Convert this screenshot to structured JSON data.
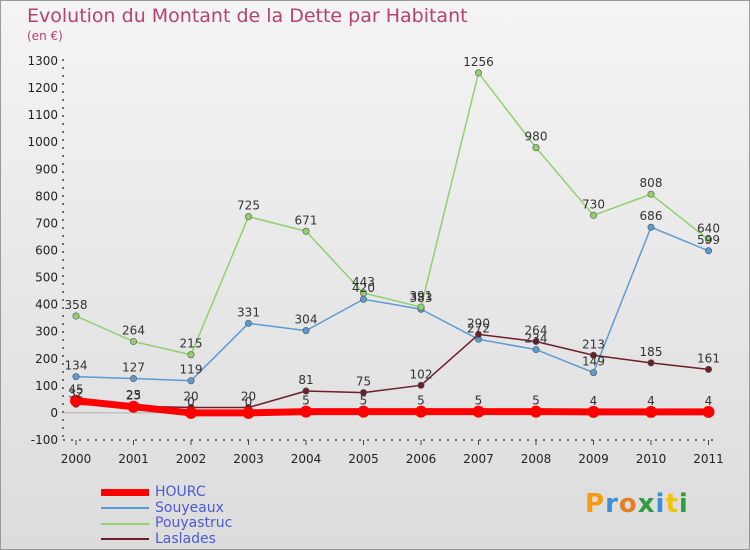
{
  "title": "Evolution du Montant de la Dette par Habitant",
  "unit": "(en €)",
  "logo": "Proxiti",
  "chart_data": {
    "type": "line",
    "categories": [
      "2000",
      "2001",
      "2002",
      "2003",
      "2004",
      "2005",
      "2006",
      "2007",
      "2008",
      "2009",
      "2010",
      "2011"
    ],
    "ylim": [
      -100,
      1300
    ],
    "yticks": [
      -100,
      0,
      100,
      200,
      300,
      400,
      500,
      600,
      700,
      800,
      900,
      1000,
      1100,
      1200,
      1300
    ],
    "grid": false,
    "legend_position": "bottom-left",
    "series": [
      {
        "name": "HOURC",
        "color": "#ff0000",
        "values": [
          45,
          23,
          0,
          0,
          5,
          5,
          5,
          5,
          5,
          4,
          4,
          4
        ]
      },
      {
        "name": "Souyeaux",
        "color": "#5b9bd5",
        "values": [
          134,
          127,
          119,
          331,
          304,
          420,
          383,
          272,
          234,
          149,
          686,
          599
        ]
      },
      {
        "name": "Pouyastruc",
        "color": "#8fd16a",
        "values": [
          358,
          264,
          215,
          725,
          671,
          443,
          391,
          1256,
          980,
          730,
          808,
          640
        ]
      },
      {
        "name": "Laslades",
        "color": "#6b1f2a",
        "values": [
          32,
          25,
          20,
          20,
          81,
          75,
          102,
          290,
          264,
          213,
          185,
          161
        ]
      }
    ]
  }
}
